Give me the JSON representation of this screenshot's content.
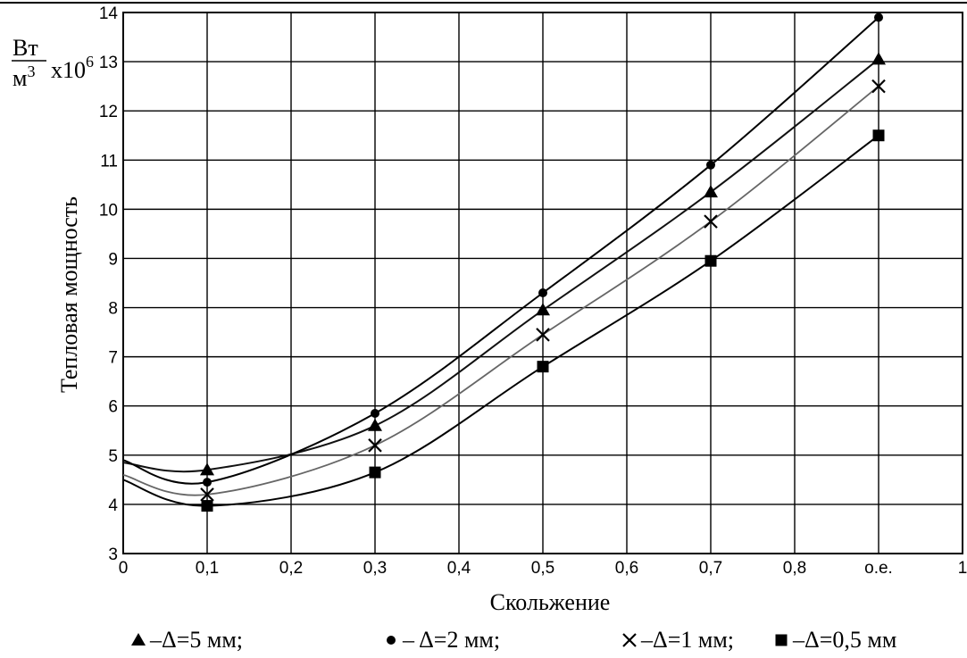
{
  "chart_data": {
    "type": "line",
    "title": "",
    "xlabel": "Скольжение",
    "ylabel": "Тепловая мощность",
    "yunit": {
      "numerator": "Вт",
      "denominator": "м",
      "denominator_exp": "3",
      "multiplier": "x10",
      "multiplier_exp": "6"
    },
    "xlim": [
      0,
      1
    ],
    "ylim": [
      3,
      14
    ],
    "grid": true,
    "x_ticks": [
      {
        "value": 0,
        "label": "0"
      },
      {
        "value": 0.1,
        "label": "0,1"
      },
      {
        "value": 0.2,
        "label": "0,2"
      },
      {
        "value": 0.3,
        "label": "0,3"
      },
      {
        "value": 0.4,
        "label": "0,4"
      },
      {
        "value": 0.5,
        "label": "0,5"
      },
      {
        "value": 0.6,
        "label": "0,6"
      },
      {
        "value": 0.7,
        "label": "0,7"
      },
      {
        "value": 0.8,
        "label": "0,8"
      },
      {
        "value": 0.9,
        "label": "о.е."
      },
      {
        "value": 1,
        "label": "1"
      }
    ],
    "y_ticks": [
      3,
      4,
      5,
      6,
      7,
      8,
      9,
      10,
      11,
      12,
      13,
      14
    ],
    "legend_placement": "bottom",
    "series": [
      {
        "name": "Δ=5 мм",
        "marker": "triangle",
        "color": "#111111",
        "x": [
          0,
          0.1,
          0.3,
          0.5,
          0.7,
          0.9
        ],
        "y": [
          4.85,
          4.7,
          5.6,
          7.95,
          10.35,
          13.05
        ],
        "marker_x": [
          0.1,
          0.3,
          0.5,
          0.7,
          0.9
        ]
      },
      {
        "name": "Δ=2 мм",
        "marker": "circle",
        "color": "#000000",
        "x": [
          0,
          0.1,
          0.3,
          0.5,
          0.7,
          0.9
        ],
        "y": [
          4.9,
          4.45,
          5.85,
          8.3,
          10.9,
          13.9
        ],
        "marker_x": [
          0.1,
          0.3,
          0.5,
          0.7,
          0.9
        ]
      },
      {
        "name": "Δ=1 мм",
        "marker": "cross",
        "color": "#666666",
        "x": [
          0,
          0.1,
          0.3,
          0.5,
          0.7,
          0.9
        ],
        "y": [
          4.6,
          4.2,
          5.2,
          7.45,
          9.75,
          12.5
        ],
        "marker_x": [
          0.1,
          0.3,
          0.5,
          0.7,
          0.9
        ]
      },
      {
        "name": "Δ=0,5 мм",
        "marker": "square",
        "color": "#000000",
        "x": [
          0,
          0.1,
          0.3,
          0.5,
          0.7,
          0.9
        ],
        "y": [
          4.5,
          3.97,
          4.65,
          6.8,
          8.95,
          11.5
        ],
        "marker_x": [
          0.1,
          0.3,
          0.5,
          0.7,
          0.9
        ]
      }
    ],
    "legend": [
      {
        "marker": "triangle",
        "text": "–Δ=5 мм;"
      },
      {
        "marker": "circle",
        "text": "– Δ=2 мм;"
      },
      {
        "marker": "cross",
        "text": "–Δ=1 мм;"
      },
      {
        "marker": "square",
        "text": "–Δ=0,5 мм"
      }
    ]
  }
}
